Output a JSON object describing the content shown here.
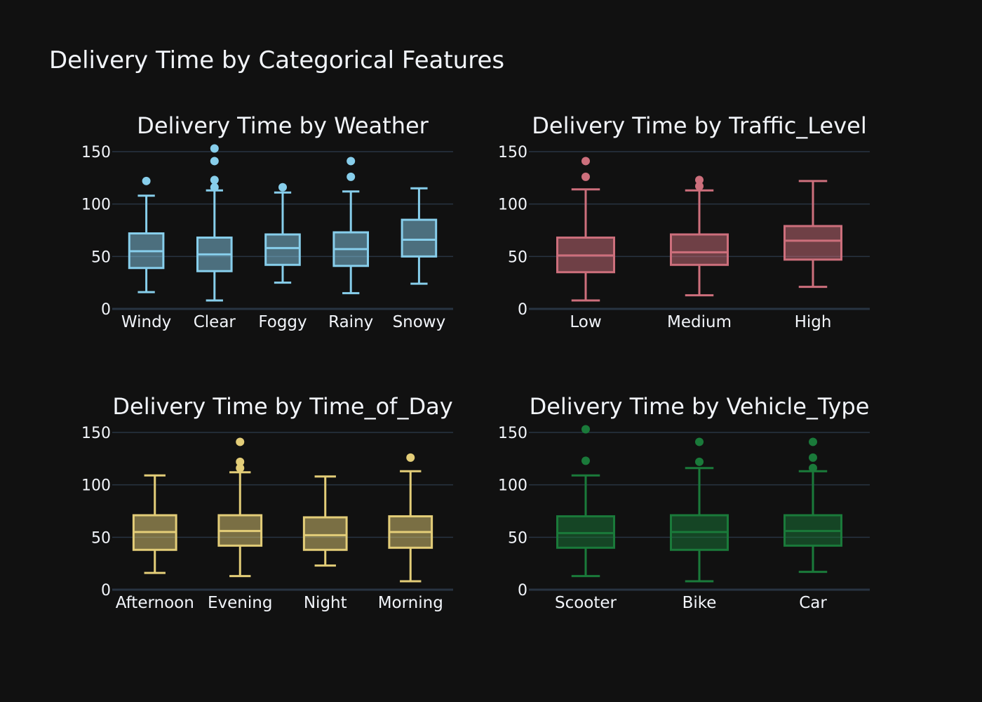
{
  "title": "Delivery Time by Categorical Features",
  "chart_data": [
    {
      "type": "box",
      "title": "Delivery Time by Weather",
      "color": "#87ceeb",
      "ylim": [
        0,
        150
      ],
      "yticks": [
        0,
        50,
        100,
        150
      ],
      "grid": true,
      "categories": [
        "Windy",
        "Clear",
        "Foggy",
        "Rainy",
        "Snowy"
      ],
      "boxes": [
        {
          "lowerfence": 16,
          "q1": 39,
          "median": 55,
          "q3": 72,
          "upperfence": 108,
          "outliers": [
            122
          ]
        },
        {
          "lowerfence": 8,
          "q1": 36,
          "median": 52,
          "q3": 68,
          "upperfence": 113,
          "outliers": [
            116,
            123,
            141,
            153
          ]
        },
        {
          "lowerfence": 25,
          "q1": 42,
          "median": 58,
          "q3": 71,
          "upperfence": 111,
          "outliers": [
            116
          ]
        },
        {
          "lowerfence": 15,
          "q1": 41,
          "median": 57,
          "q3": 73,
          "upperfence": 112,
          "outliers": [
            126,
            141
          ]
        },
        {
          "lowerfence": 24,
          "q1": 50,
          "median": 66,
          "q3": 85,
          "upperfence": 115,
          "outliers": []
        }
      ]
    },
    {
      "type": "box",
      "title": "Delivery Time by Traffic_Level",
      "color": "#cd6f7c",
      "ylim": [
        0,
        150
      ],
      "yticks": [
        0,
        50,
        100,
        150
      ],
      "grid": true,
      "categories": [
        "Low",
        "Medium",
        "High"
      ],
      "boxes": [
        {
          "lowerfence": 8,
          "q1": 35,
          "median": 51,
          "q3": 68,
          "upperfence": 114,
          "outliers": [
            126,
            141
          ]
        },
        {
          "lowerfence": 13,
          "q1": 42,
          "median": 54,
          "q3": 71,
          "upperfence": 113,
          "outliers": [
            117,
            123
          ]
        },
        {
          "lowerfence": 21,
          "q1": 47,
          "median": 65,
          "q3": 79,
          "upperfence": 122,
          "outliers": []
        }
      ]
    },
    {
      "type": "box",
      "title": "Delivery Time by Time_of_Day",
      "color": "#e3cd78",
      "ylim": [
        0,
        150
      ],
      "yticks": [
        0,
        50,
        100,
        150
      ],
      "grid": true,
      "categories": [
        "Afternoon",
        "Evening",
        "Night",
        "Morning"
      ],
      "boxes": [
        {
          "lowerfence": 16,
          "q1": 38,
          "median": 55,
          "q3": 71,
          "upperfence": 109,
          "outliers": []
        },
        {
          "lowerfence": 13,
          "q1": 42,
          "median": 56,
          "q3": 71,
          "upperfence": 112,
          "outliers": [
            116,
            122,
            141
          ]
        },
        {
          "lowerfence": 23,
          "q1": 38,
          "median": 52,
          "q3": 69,
          "upperfence": 108,
          "outliers": []
        },
        {
          "lowerfence": 8,
          "q1": 40,
          "median": 55,
          "q3": 70,
          "upperfence": 113,
          "outliers": [
            126
          ]
        }
      ]
    },
    {
      "type": "box",
      "title": "Delivery Time by Vehicle_Type",
      "color": "#1a7a3a",
      "ylim": [
        0,
        150
      ],
      "yticks": [
        0,
        50,
        100,
        150
      ],
      "grid": true,
      "categories": [
        "Scooter",
        "Bike",
        "Car"
      ],
      "boxes": [
        {
          "lowerfence": 13,
          "q1": 40,
          "median": 54,
          "q3": 70,
          "upperfence": 109,
          "outliers": [
            123,
            153
          ]
        },
        {
          "lowerfence": 8,
          "q1": 38,
          "median": 55,
          "q3": 71,
          "upperfence": 116,
          "outliers": [
            122,
            141
          ]
        },
        {
          "lowerfence": 17,
          "q1": 42,
          "median": 56,
          "q3": 71,
          "upperfence": 113,
          "outliers": [
            116,
            126,
            141
          ]
        }
      ]
    }
  ]
}
